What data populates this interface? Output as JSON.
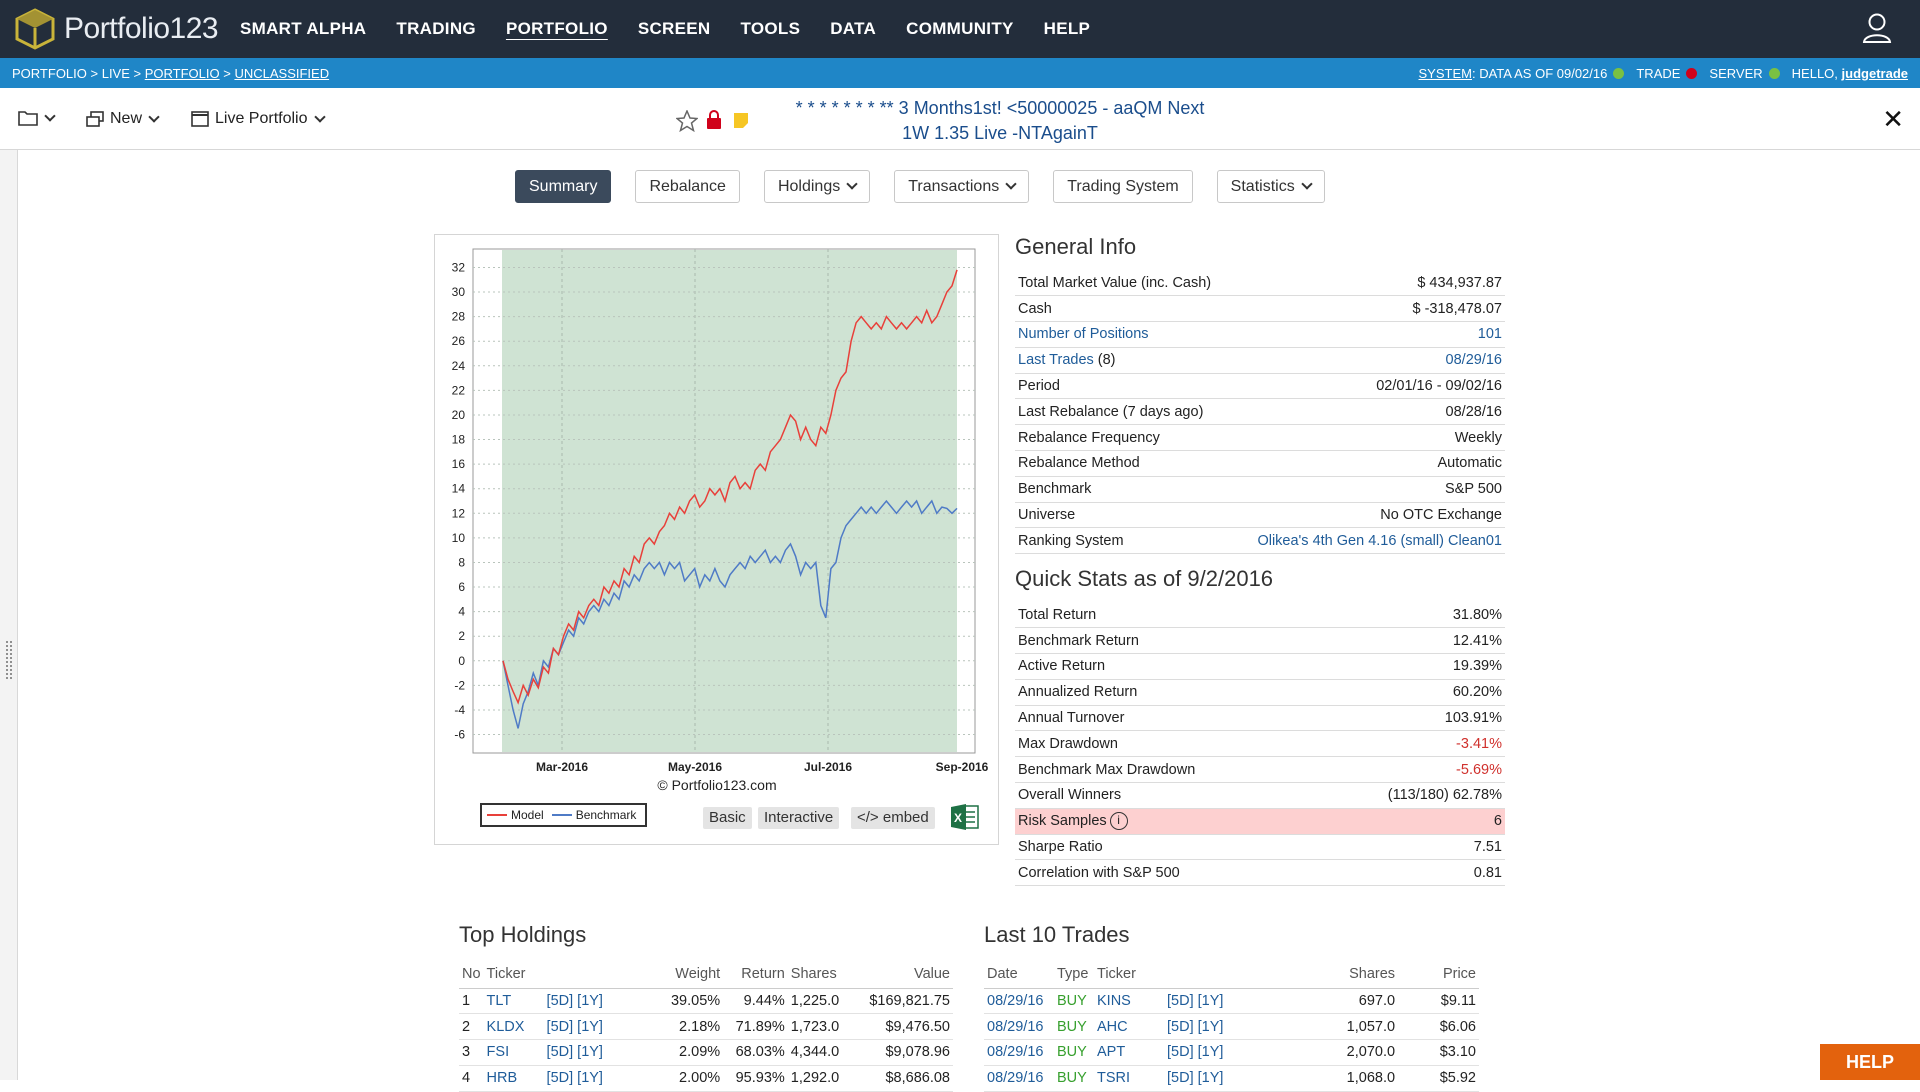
{
  "nav": {
    "brand": "Portfolio123",
    "items": [
      "SMART ALPHA",
      "TRADING",
      "PORTFOLIO",
      "SCREEN",
      "TOOLS",
      "DATA",
      "COMMUNITY",
      "HELP"
    ],
    "active": "PORTFOLIO"
  },
  "breadcrumb": {
    "p1": "PORTFOLIO",
    "p2": "LIVE",
    "p3": "PORTFOLIO",
    "p4": "UNCLASSIFIED",
    "sep": " > "
  },
  "status": {
    "system_label": "SYSTEM",
    "data_as_of": ": DATA AS OF 09/02/16",
    "trade_label": "TRADE",
    "server_label": "SERVER",
    "hello": "HELLO,",
    "username": "judgetrade",
    "colors": {
      "data": "#7ac143",
      "trade": "#d0021b",
      "server": "#7ac143"
    }
  },
  "toolbar": {
    "new_label": "New",
    "live_label": "Live Portfolio",
    "title_line1": "* * * * * * * ** 3 Months1st! <50000025 - aaQM Next",
    "title_line2": "1W 1.35 Live -NTAgainT",
    "close": "✕"
  },
  "tabs": [
    {
      "label": "Summary",
      "dropdown": false,
      "active": true
    },
    {
      "label": "Rebalance",
      "dropdown": false,
      "active": false
    },
    {
      "label": "Holdings",
      "dropdown": true,
      "active": false
    },
    {
      "label": "Transactions",
      "dropdown": true,
      "active": false
    },
    {
      "label": "Trading System",
      "dropdown": false,
      "active": false
    },
    {
      "label": "Statistics",
      "dropdown": true,
      "active": false
    }
  ],
  "chart_data": {
    "type": "line",
    "yticks": [
      32,
      30,
      28,
      26,
      24,
      22,
      20,
      18,
      16,
      14,
      12,
      10,
      8,
      6,
      4,
      2,
      0,
      -2,
      -4,
      -6
    ],
    "ylim": [
      -7.5,
      33.5
    ],
    "x_tick_labels": [
      "Mar-2016",
      "May-2016",
      "Jul-2016",
      "Sep-2016"
    ],
    "copyright": "© Portfolio123.com",
    "legend": [
      "Model",
      "Benchmark"
    ],
    "buttons": [
      "Basic",
      "Interactive",
      "</> embed"
    ],
    "colors": {
      "model": "#e8403a",
      "benchmark": "#4f7bc6",
      "shade": "#cfe3d3"
    },
    "series": [
      {
        "name": "Model",
        "values": [
          0,
          -1.5,
          -2.5,
          -3.4,
          -2,
          -2.8,
          -1.5,
          -2.2,
          -0.5,
          -1,
          1,
          0.5,
          2,
          3,
          2.5,
          4,
          3.5,
          4.5,
          5,
          4.5,
          6,
          5.5,
          6.5,
          6,
          7.5,
          7,
          8.5,
          8,
          9.5,
          10,
          9.5,
          10.5,
          11,
          12,
          11.5,
          12.5,
          12,
          13,
          13.5,
          12.5,
          13,
          14,
          13.5,
          14,
          13,
          14.5,
          15,
          14,
          14.5,
          14,
          15.5,
          16,
          15.5,
          17,
          17.5,
          18,
          19,
          20,
          19.5,
          18,
          19,
          18,
          17.5,
          19,
          18.5,
          20,
          22,
          23,
          23.5,
          26,
          27.5,
          28,
          27.5,
          27,
          27.5,
          27,
          28,
          27.5,
          27,
          27.5,
          27,
          27.5,
          28,
          27.5,
          28.5,
          27.5,
          28,
          29,
          30,
          30.5,
          31.8
        ]
      },
      {
        "name": "Benchmark",
        "values": [
          0,
          -2,
          -4,
          -5.5,
          -3.5,
          -2.5,
          -1,
          -2,
          0,
          -0.5,
          1,
          0.5,
          1.5,
          2.5,
          2,
          3.5,
          3,
          4,
          4.5,
          4,
          5,
          4.5,
          5.5,
          5,
          6.5,
          6,
          7,
          6.5,
          7.5,
          8,
          7.5,
          8,
          7,
          8,
          7.5,
          8,
          6.5,
          7,
          7.5,
          6,
          7,
          6.5,
          7.5,
          6.5,
          6,
          7,
          7.5,
          8,
          7.5,
          8.5,
          8,
          8.5,
          9,
          8,
          8.5,
          8,
          9,
          9.5,
          8.5,
          7,
          8,
          7.5,
          8,
          4.5,
          3.5,
          7.5,
          8,
          10,
          11,
          11.5,
          12,
          12.5,
          12,
          12.5,
          12,
          12.5,
          13,
          12.5,
          12,
          12.5,
          13,
          12.5,
          13,
          12,
          12.5,
          13,
          12,
          12.5,
          12.4,
          12,
          12.4
        ]
      }
    ]
  },
  "general_info": {
    "title": "General Info",
    "rows": [
      {
        "label": "Total Market Value (inc. Cash)",
        "value": "$ 434,937.87"
      },
      {
        "label": "Cash",
        "value": "$ -318,478.07"
      },
      {
        "label": "Number of Positions",
        "value": "101",
        "link": true
      },
      {
        "label": "Last Trades",
        "label_suffix": " (8)",
        "value": "08/29/16",
        "link": true
      },
      {
        "label": "Period",
        "value": "02/01/16 - 09/02/16"
      },
      {
        "label": "Last Rebalance (7 days ago)",
        "value": "08/28/16"
      },
      {
        "label": "Rebalance Frequency",
        "value": "Weekly"
      },
      {
        "label": "Rebalance Method",
        "value": "Automatic"
      },
      {
        "label": "Benchmark",
        "value": "S&P 500"
      },
      {
        "label": "Universe",
        "value": "No OTC Exchange"
      },
      {
        "label": "Ranking System",
        "value": "Olikea's 4th Gen 4.16 (small) Clean01",
        "value_link": true
      }
    ]
  },
  "quick_stats": {
    "title": "Quick Stats as of 9/2/2016",
    "rows": [
      {
        "label": "Total Return",
        "value": "31.80%"
      },
      {
        "label": "Benchmark Return",
        "value": "12.41%"
      },
      {
        "label": "Active Return",
        "value": "19.39%"
      },
      {
        "label": "Annualized Return",
        "value": "60.20%"
      },
      {
        "label": "Annual Turnover",
        "value": "103.91%"
      },
      {
        "label": "Max Drawdown",
        "value": "-3.41%",
        "neg": true
      },
      {
        "label": "Benchmark Max Drawdown",
        "value": "-5.69%",
        "neg": true
      },
      {
        "label": "Overall Winners",
        "value": "(113/180) 62.78%"
      },
      {
        "label": "Risk Samples",
        "value": "6",
        "highlight": true,
        "info": true
      },
      {
        "label": "Sharpe Ratio",
        "value": "7.51"
      },
      {
        "label": "Correlation with S&P 500",
        "value": "0.81"
      }
    ]
  },
  "top_holdings": {
    "title": "Top Holdings",
    "headers": [
      "No",
      "Ticker",
      "",
      "Weight",
      "Return",
      "Shares",
      "Value"
    ],
    "rows": [
      {
        "no": "1",
        "ticker": "TLT",
        "w": "39.05%",
        "ret": "9.44%",
        "sh": "1,225.0",
        "val": "$169,821.75"
      },
      {
        "no": "2",
        "ticker": "KLDX",
        "w": "2.18%",
        "ret": "71.89%",
        "sh": "1,723.0",
        "val": "$9,476.50"
      },
      {
        "no": "3",
        "ticker": "FSI",
        "w": "2.09%",
        "ret": "68.03%",
        "sh": "4,344.0",
        "val": "$9,078.96"
      },
      {
        "no": "4",
        "ticker": "HRB",
        "w": "2.00%",
        "ret": "95.93%",
        "sh": "1,292.0",
        "val": "$8,686.08"
      }
    ],
    "links5": "[5D]",
    "links1": "[1Y]"
  },
  "last_trades": {
    "title": "Last 10 Trades",
    "headers": [
      "Date",
      "Type",
      "Ticker",
      "",
      "Shares",
      "Price"
    ],
    "rows": [
      {
        "date": "08/29/16",
        "type": "BUY",
        "ticker": "KINS",
        "sh": "697.0",
        "price": "$9.11"
      },
      {
        "date": "08/29/16",
        "type": "BUY",
        "ticker": "AHC",
        "sh": "1,057.0",
        "price": "$6.06"
      },
      {
        "date": "08/29/16",
        "type": "BUY",
        "ticker": "APT",
        "sh": "2,070.0",
        "price": "$3.10"
      },
      {
        "date": "08/29/16",
        "type": "BUY",
        "ticker": "TSRI",
        "sh": "1,068.0",
        "price": "$5.92"
      }
    ]
  },
  "help_label": "HELP"
}
